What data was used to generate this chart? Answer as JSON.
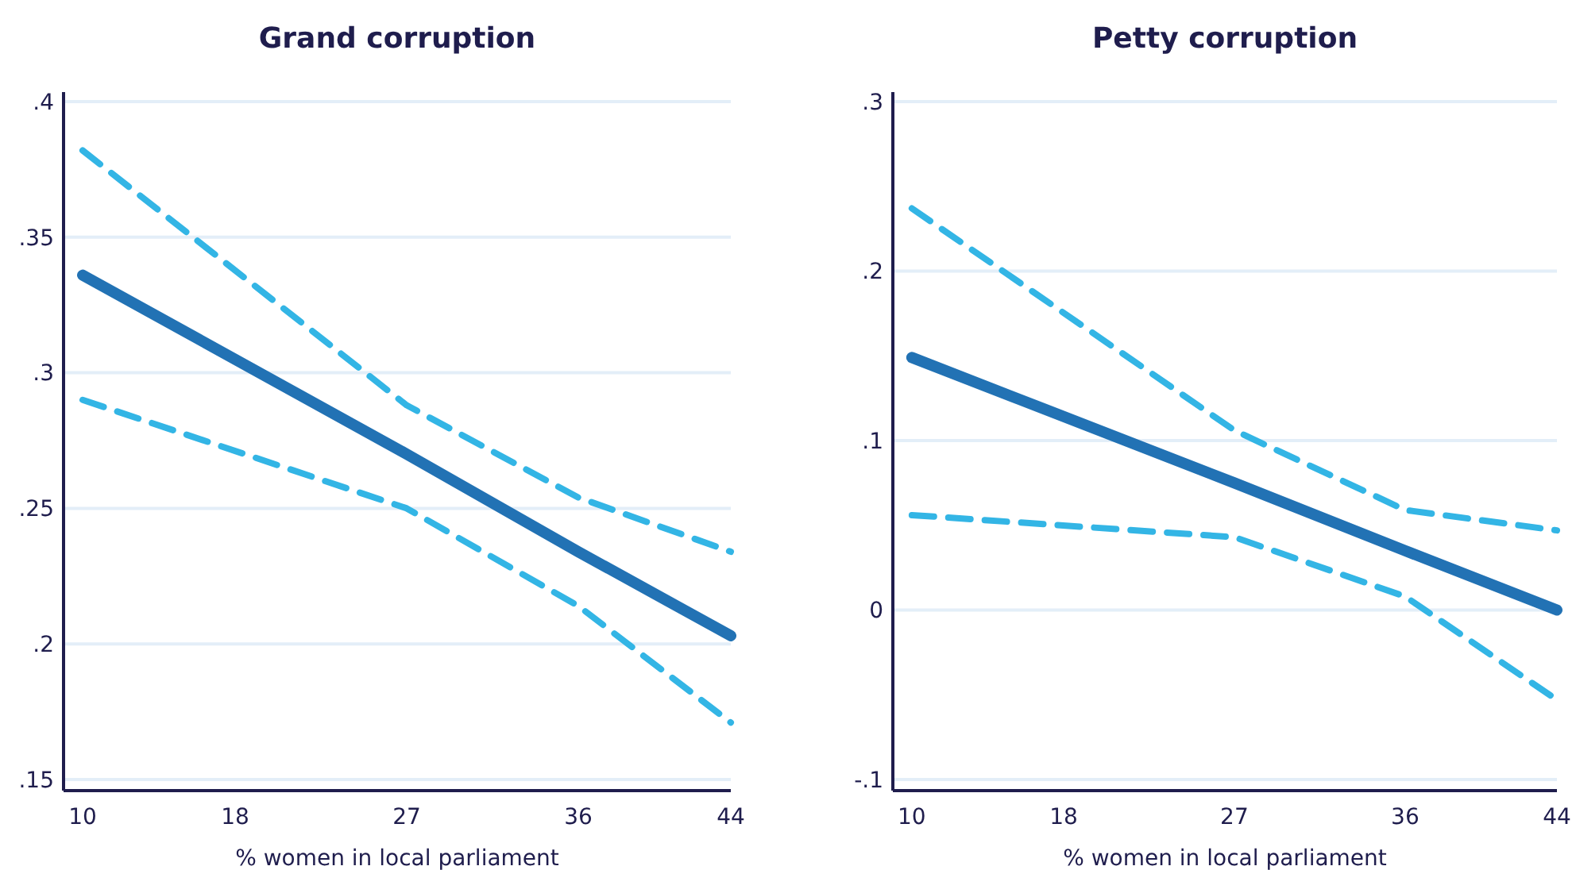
{
  "chart_data": [
    {
      "type": "line",
      "title": "Grand corruption",
      "xlabel": "% women in local parliament",
      "x": [
        10,
        27,
        36,
        44
      ],
      "xlim": [
        9,
        44
      ],
      "xticks": [
        10,
        18,
        27,
        36,
        44
      ],
      "ylim": [
        0.15,
        0.4
      ],
      "yticks": [
        {
          "value": 0.15,
          "label": ".15"
        },
        {
          "value": 0.2,
          "label": ".2"
        },
        {
          "value": 0.25,
          "label": ".25"
        },
        {
          "value": 0.3,
          "label": ".3"
        },
        {
          "value": 0.35,
          "label": ".35"
        },
        {
          "value": 0.4,
          "label": ".4"
        }
      ],
      "grid": "y",
      "series": [
        {
          "color": "#33b5e5",
          "line_style": "dashed",
          "values": [
            0.382,
            0.288,
            0.254,
            0.234
          ]
        },
        {
          "color": "#33b5e5",
          "line_style": "dashed",
          "values": [
            0.29,
            0.25,
            0.214,
            0.171
          ]
        },
        {
          "color": "#2272b4",
          "line_style": "solid",
          "values": [
            0.336,
            0.27,
            0.234,
            0.203
          ]
        }
      ]
    },
    {
      "type": "line",
      "title": "Petty corruption",
      "xlabel": "% women in local parliament",
      "x": [
        10,
        27,
        36,
        44
      ],
      "xlim": [
        9,
        44
      ],
      "xticks": [
        10,
        18,
        27,
        36,
        44
      ],
      "ylim": [
        -0.1,
        0.3
      ],
      "yticks": [
        {
          "value": -0.1,
          "label": "-.1"
        },
        0,
        {
          "value": 0.1,
          "label": ".1"
        },
        {
          "value": 0.2,
          "label": ".2"
        },
        {
          "value": 0.3,
          "label": ".3"
        }
      ],
      "grid": "y",
      "series": [
        {
          "color": "#33b5e5",
          "line_style": "dashed",
          "values": [
            0.237,
            0.106,
            0.059,
            0.047
          ]
        },
        {
          "color": "#33b5e5",
          "line_style": "dashed",
          "values": [
            0.056,
            0.043,
            0.008,
            -0.053
          ]
        },
        {
          "color": "#2272b4",
          "line_style": "solid",
          "values": [
            0.149,
            0.075,
            0.035,
            0
          ]
        }
      ]
    }
  ]
}
